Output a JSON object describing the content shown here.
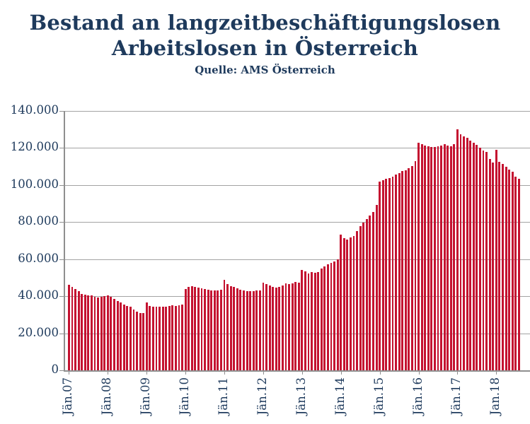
{
  "header": {
    "title_line1": "Bestand an langzeitbeschäftigungslosen",
    "title_line2": "Arbeitslosen in Österreich",
    "subtitle": "Quelle: AMS Österreich"
  },
  "chart_data": {
    "type": "bar",
    "title": "Bestand an langzeitbeschäftigungslosen Arbeitslosen in Österreich",
    "subtitle": "Quelle: AMS Österreich",
    "frequency": "monthly",
    "x_start": "2007-01",
    "x_end": "2018-08",
    "xlabel": "",
    "ylabel": "",
    "ylim": [
      0,
      140000
    ],
    "grid": true,
    "legend": false,
    "bar_color": "#c41230",
    "axis_text_color": "#1e3a5c",
    "grid_color": "#a3a3a3",
    "y_tick_step": 20000,
    "y_tick_labels": [
      "0",
      "20.000",
      "40.000",
      "60.000",
      "80.000",
      "100.000",
      "120.000",
      "140.000"
    ],
    "x_tick_labels": [
      "Jän.07",
      "Jän.08",
      "Jän.09",
      "Jän.10",
      "Jän.11",
      "Jän.12",
      "Jän.13",
      "Jän.14",
      "Jän.15",
      "Jän.16",
      "Jän.17",
      "Jan.18"
    ],
    "months_per_tick": 12,
    "values": [
      46000,
      45000,
      43800,
      42700,
      41000,
      40800,
      40500,
      40200,
      39600,
      39300,
      39700,
      40000,
      40300,
      39500,
      38300,
      37200,
      36400,
      35600,
      34800,
      34100,
      32800,
      31500,
      30700,
      31000,
      36600,
      34500,
      34300,
      34100,
      34300,
      34100,
      34300,
      34700,
      35000,
      34700,
      34900,
      35300,
      43700,
      44800,
      45200,
      44900,
      44500,
      44100,
      43800,
      43500,
      43200,
      42900,
      43100,
      43400,
      48600,
      46300,
      45300,
      45100,
      44100,
      43500,
      43200,
      42800,
      42500,
      42500,
      42900,
      43000,
      47300,
      46300,
      45700,
      44800,
      44400,
      44800,
      45700,
      47000,
      46300,
      47000,
      47600,
      47300,
      54100,
      53500,
      52200,
      52900,
      52500,
      52900,
      54800,
      56000,
      57300,
      57900,
      58500,
      59800,
      73100,
      71200,
      70600,
      71500,
      72200,
      75000,
      77600,
      79500,
      81400,
      83300,
      85500,
      89000,
      101600,
      102300,
      103200,
      103800,
      104500,
      105700,
      106300,
      107300,
      107800,
      109100,
      110100,
      112900,
      122500,
      121800,
      121300,
      120900,
      120500,
      120300,
      120900,
      121300,
      121800,
      121100,
      120600,
      121800,
      130000,
      127200,
      126200,
      125300,
      123700,
      122500,
      121500,
      119900,
      118600,
      117700,
      114000,
      112000,
      119000,
      112400,
      111100,
      109600,
      108300,
      107100,
      104500,
      103200
    ]
  }
}
